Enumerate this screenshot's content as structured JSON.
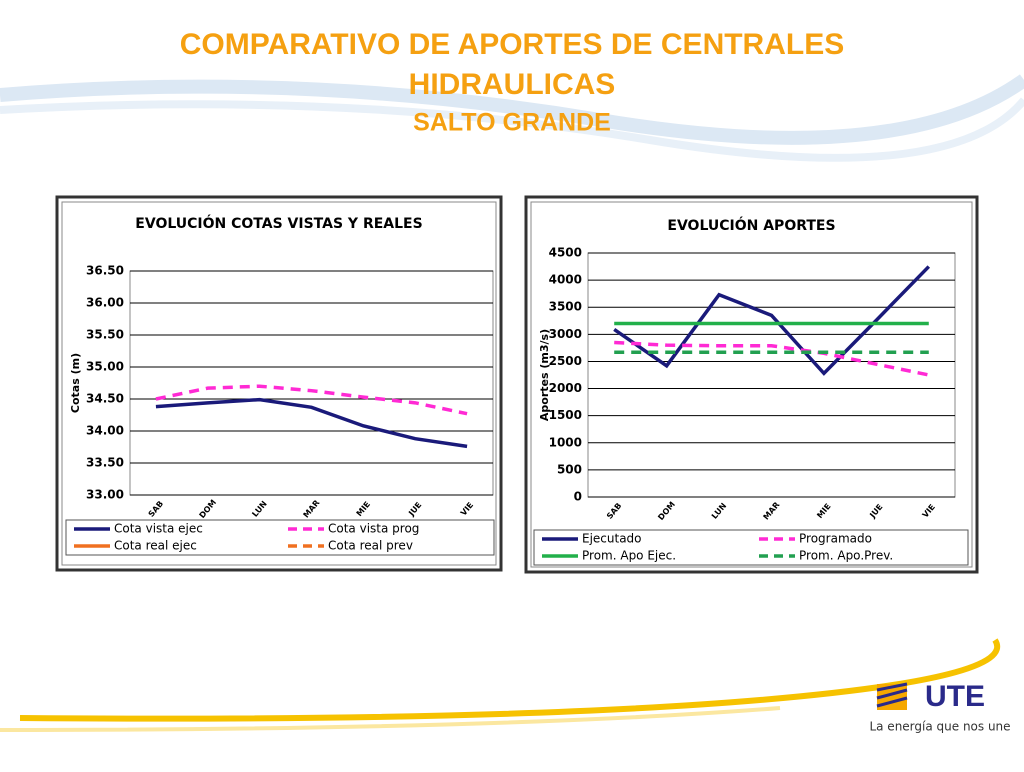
{
  "title": "COMPARATIVO DE APORTES DE CENTRALES HIDRAULICAS",
  "subtitle": "SALTO GRANDE",
  "logo": "UTE",
  "slogan": "La energía que nos une",
  "chart_data": [
    {
      "type": "line",
      "title": "EVOLUCIÓN  COTAS VISTAS Y REALES",
      "y_label": "Cotas (m)",
      "categories": [
        "SAB",
        "DOM",
        "LUN",
        "MAR",
        "MIE",
        "JUE",
        "VIE"
      ],
      "ylim": [
        33,
        36.5
      ],
      "yticks": [
        {
          "value": 33,
          "label": "33.00"
        },
        {
          "value": 33.5,
          "label": "33.50"
        },
        {
          "value": 34,
          "label": "34.00"
        },
        {
          "value": 34.5,
          "label": "34.50"
        },
        {
          "value": 35,
          "label": "35.00"
        },
        {
          "value": 35.5,
          "label": "35.50"
        },
        {
          "value": 36,
          "label": "36.00"
        },
        {
          "value": 36.5,
          "label": "36.50"
        }
      ],
      "grid": true,
      "series": [
        {
          "name": "Cota vista ejec",
          "color": "#1a1a7a",
          "dashed": false,
          "values": [
            34.38,
            34.44,
            34.49,
            34.37,
            34.08,
            33.88,
            33.76
          ]
        },
        {
          "name": "Cota vista prog",
          "color": "#ff2ad4",
          "dashed": true,
          "values": [
            34.5,
            34.67,
            34.7,
            34.63,
            34.53,
            34.44,
            34.27
          ]
        },
        {
          "name": "Cota real ejec",
          "color": "#f07020",
          "dashed": false,
          "values": [
            null,
            null,
            null,
            null,
            null,
            null,
            null
          ]
        },
        {
          "name": "Cota real prev",
          "color": "#f07020",
          "dashed": true,
          "values": [
            null,
            null,
            null,
            null,
            null,
            null,
            null
          ]
        }
      ]
    },
    {
      "type": "line",
      "title": "EVOLUCIÓN  APORTES",
      "y_label": "Aportes (m3/s)",
      "categories": [
        "SAB",
        "DOM",
        "LUN",
        "MAR",
        "MIE",
        "JUE",
        "VIE"
      ],
      "ylim": [
        0,
        4500
      ],
      "yticks": [
        0,
        500,
        1000,
        1500,
        2000,
        2500,
        3000,
        3500,
        4000,
        4500
      ],
      "grid": true,
      "series": [
        {
          "name": "Ejecutado",
          "color": "#1a1a7a",
          "dashed": false,
          "values": [
            3090,
            2420,
            3730,
            3350,
            2280,
            3260,
            4250
          ]
        },
        {
          "name": "Programado",
          "color": "#ff2ad4",
          "dashed": true,
          "values": [
            2850,
            2800,
            2790,
            2790,
            2650,
            2450,
            2250
          ]
        },
        {
          "name": "Prom. Apo Ejec.",
          "color": "#22b04a",
          "dashed": false,
          "values": [
            3200,
            3200,
            3200,
            3200,
            3200,
            3200,
            3200
          ]
        },
        {
          "name": "Prom. Apo.Prev.",
          "color": "#22a050",
          "dashed": true,
          "values": [
            2670,
            2670,
            2670,
            2670,
            2670,
            2670,
            2670
          ]
        }
      ]
    }
  ]
}
